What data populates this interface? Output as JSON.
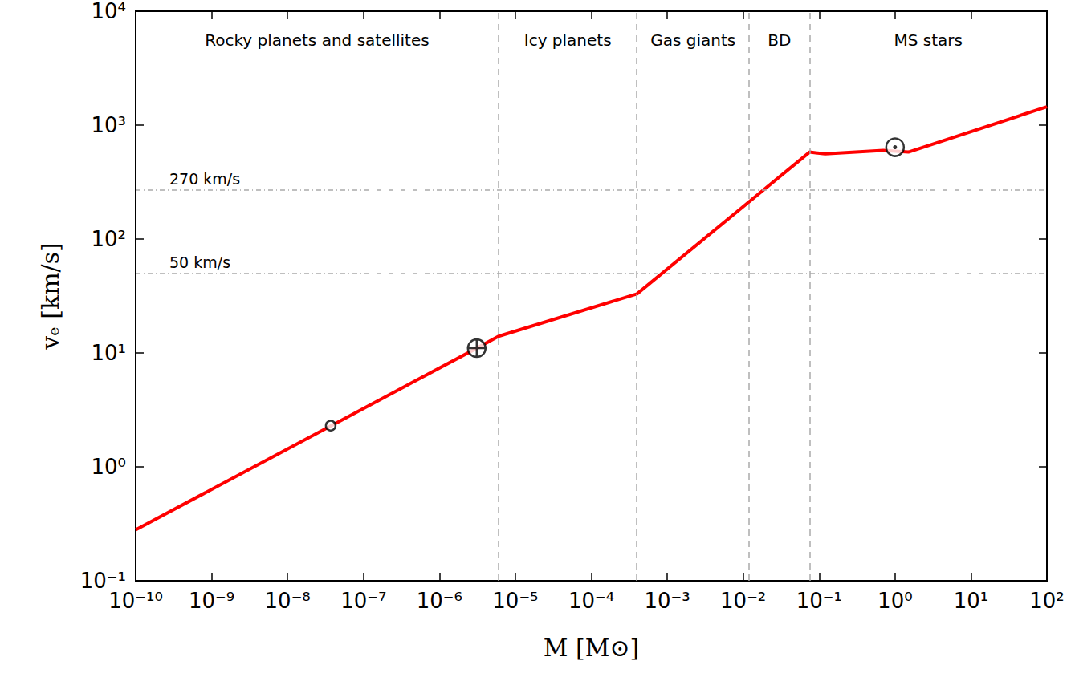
{
  "chart_data": {
    "type": "line",
    "log": true,
    "grid": false,
    "xlabel": "M [M⊙]",
    "ylabel": "vₑ [km/s]",
    "xlim": [
      1e-10,
      100
    ],
    "ylim": [
      0.1,
      10000
    ],
    "xticks": [
      {
        "value": 1e-10,
        "label": "10⁻¹⁰"
      },
      {
        "value": 1e-09,
        "label": "10⁻⁹"
      },
      {
        "value": 1e-08,
        "label": "10⁻⁸"
      },
      {
        "value": 1e-07,
        "label": "10⁻⁷"
      },
      {
        "value": 1e-06,
        "label": "10⁻⁶"
      },
      {
        "value": 1e-05,
        "label": "10⁻⁵"
      },
      {
        "value": 0.0001,
        "label": "10⁻⁴"
      },
      {
        "value": 0.001,
        "label": "10⁻³"
      },
      {
        "value": 0.01,
        "label": "10⁻²"
      },
      {
        "value": 0.1,
        "label": "10⁻¹"
      },
      {
        "value": 1,
        "label": "10⁰"
      },
      {
        "value": 10,
        "label": "10¹"
      },
      {
        "value": 100,
        "label": "10²"
      }
    ],
    "yticks": [
      {
        "value": 0.1,
        "label": "10⁻¹"
      },
      {
        "value": 1,
        "label": "10⁰"
      },
      {
        "value": 10,
        "label": "10¹"
      },
      {
        "value": 100,
        "label": "10²"
      },
      {
        "value": 1000,
        "label": "10³"
      },
      {
        "value": 10000,
        "label": "10⁴"
      }
    ],
    "series": [
      {
        "type": "line",
        "color": "#ff0000",
        "x": [
          1e-10,
          3.1e-06,
          6e-06,
          0.0004,
          0.075,
          0.12,
          0.7,
          1.5,
          100
        ],
        "values": [
          0.28,
          11,
          14,
          33,
          580,
          560,
          600,
          580,
          1450
        ]
      },
      {
        "type": "scatter",
        "marker": "circle",
        "color": "#000000",
        "x": [
          3.7e-08
        ],
        "values": [
          2.3
        ]
      },
      {
        "type": "scatter",
        "marker": "earth",
        "color": "#000000",
        "x": [
          3.1e-06
        ],
        "values": [
          11
        ]
      },
      {
        "type": "scatter",
        "marker": "sun",
        "color": "#000000",
        "x": [
          1
        ],
        "values": [
          640
        ]
      }
    ],
    "regions": [
      {
        "label": "Rocky planets and satellites",
        "from": 1e-10,
        "to": 6e-06
      },
      {
        "label": "Icy planets",
        "from": 6e-06,
        "to": 0.0004
      },
      {
        "label": "Gas giants",
        "from": 0.0004,
        "to": 0.012
      },
      {
        "label": "BD",
        "from": 0.012,
        "to": 0.075
      },
      {
        "label": "MS stars",
        "from": 0.075,
        "to": 100
      }
    ],
    "reference_lines": [
      {
        "y": 270,
        "label": "270 km/s"
      },
      {
        "y": 50,
        "label": "50 km/s"
      }
    ]
  }
}
